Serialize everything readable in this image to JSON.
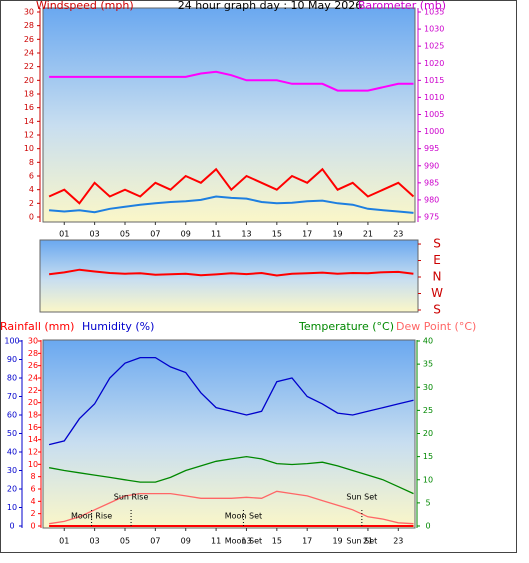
{
  "chart_data": [
    {
      "type": "line",
      "title": "24 hour graph day : 10 May 2026",
      "ylabel": "Windspeed (mph)",
      "y2label": "Barometer (mb)",
      "x": [
        0,
        1,
        2,
        3,
        4,
        5,
        6,
        7,
        8,
        9,
        10,
        11,
        12,
        13,
        14,
        15,
        16,
        17,
        18,
        19,
        20,
        21,
        22,
        23,
        24
      ],
      "xlim": [
        -0.4,
        24.1
      ],
      "xticks": [
        {
          "value": 1,
          "label": "01"
        },
        {
          "value": 3,
          "label": "03"
        },
        {
          "value": 5,
          "label": "05"
        },
        {
          "value": 7,
          "label": "07"
        },
        {
          "value": 9,
          "label": "09"
        },
        {
          "value": 11,
          "label": "11"
        },
        {
          "value": 13,
          "label": "13"
        },
        {
          "value": 15,
          "label": "15"
        },
        {
          "value": 17,
          "label": "17"
        },
        {
          "value": 19,
          "label": "19"
        },
        {
          "value": 21,
          "label": "21"
        },
        {
          "value": 23,
          "label": "23"
        }
      ],
      "ylim": [
        0,
        30
      ],
      "yticks": [
        0,
        2,
        4,
        6,
        8,
        10,
        12,
        14,
        16,
        18,
        20,
        22,
        24,
        26,
        28,
        30
      ],
      "ycolor": "#cc0000",
      "y2lim": [
        975,
        1035
      ],
      "y2ticks": [
        975,
        980,
        985,
        990,
        995,
        1000,
        1005,
        1010,
        1015,
        1020,
        1025,
        1030,
        1035
      ],
      "y2color": "#cc00cc",
      "series": [
        {
          "color": "#ff0000",
          "values": [
            3,
            4,
            2,
            5,
            3,
            4,
            3,
            5,
            4,
            6,
            5,
            7,
            4,
            6,
            5,
            4,
            6,
            5,
            7,
            4,
            5,
            3,
            4,
            5,
            3
          ]
        },
        {
          "color": "#1e7fe0",
          "values": [
            1,
            0.8,
            1,
            0.7,
            1.2,
            1.5,
            1.8,
            2,
            2.2,
            2.3,
            2.5,
            3,
            2.8,
            2.7,
            2.2,
            2,
            2.1,
            2.3,
            2.4,
            2,
            1.8,
            1.2,
            1,
            0.8,
            0.6
          ]
        },
        {
          "color": "#ff00ff",
          "axis": "y2",
          "values": [
            1016,
            1016,
            1016,
            1016,
            1016,
            1016,
            1016,
            1016,
            1016,
            1016,
            1017,
            1017.5,
            1016.5,
            1015,
            1015,
            1015,
            1014,
            1014,
            1014,
            1012,
            1012,
            1012,
            1013,
            1014,
            1014
          ]
        }
      ]
    },
    {
      "type": "line",
      "x": [
        0,
        1,
        2,
        3,
        4,
        5,
        6,
        7,
        8,
        9,
        10,
        11,
        12,
        13,
        14,
        15,
        16,
        17,
        18,
        19,
        20,
        21,
        22,
        23,
        24
      ],
      "xlim": [
        -0.6,
        24.3
      ],
      "ylim": [
        -191,
        202
      ],
      "yticks": [
        {
          "value": 180,
          "label": "S"
        },
        {
          "value": 90,
          "label": "E"
        },
        {
          "value": 0,
          "label": "N"
        },
        {
          "value": -90,
          "label": "W"
        },
        {
          "value": -180,
          "label": "S"
        }
      ],
      "series": [
        {
          "color": "#ff0000",
          "values": [
            15,
            25,
            40,
            30,
            22,
            18,
            20,
            12,
            15,
            18,
            10,
            14,
            20,
            16,
            22,
            8,
            18,
            20,
            24,
            18,
            22,
            20,
            26,
            28,
            18
          ]
        }
      ]
    },
    {
      "type": "line",
      "x": [
        0,
        1,
        2,
        3,
        4,
        5,
        6,
        7,
        8,
        9,
        10,
        11,
        12,
        13,
        14,
        15,
        16,
        17,
        18,
        19,
        20,
        21,
        22,
        23,
        24
      ],
      "xlim": [
        -0.4,
        24.1
      ],
      "xticks": [
        {
          "value": 1,
          "label": "01"
        },
        {
          "value": 3,
          "label": "03"
        },
        {
          "value": 5,
          "label": "05"
        },
        {
          "value": 7,
          "label": "07"
        },
        {
          "value": 9,
          "label": "09"
        },
        {
          "value": 11,
          "label": "11"
        },
        {
          "value": 13,
          "label": "13"
        },
        {
          "value": 15,
          "label": "15"
        },
        {
          "value": 17,
          "label": "17"
        },
        {
          "value": 19,
          "label": "19"
        },
        {
          "value": 21,
          "label": "21"
        },
        {
          "value": 23,
          "label": "23"
        }
      ],
      "axes": [
        {
          "label": "Humidity (%)",
          "color": "#0000cc",
          "lim": [
            0,
            100
          ],
          "ticks": [
            0,
            10,
            20,
            30,
            40,
            50,
            60,
            70,
            80,
            90,
            100
          ]
        },
        {
          "label": "Rainfall (mm)",
          "color": "#ff0000",
          "lim": [
            0,
            30
          ],
          "ticks": [
            0,
            2,
            4,
            6,
            8,
            10,
            12,
            14,
            16,
            18,
            20,
            22,
            24,
            26,
            28,
            30
          ]
        },
        {
          "label": "Temperature (°C)",
          "color": "#008800",
          "lim": [
            0,
            40
          ],
          "ticks": [
            0,
            5,
            10,
            15,
            20,
            25,
            30,
            35,
            40
          ]
        }
      ],
      "series": [
        {
          "color": "#0000cc",
          "axis": 0,
          "values": [
            44,
            46,
            58,
            66,
            80,
            88,
            91,
            91,
            86,
            83,
            72,
            64,
            62,
            60,
            62,
            78,
            80,
            70,
            66,
            61,
            60,
            62,
            64,
            66,
            68
          ]
        },
        {
          "color": "#ff0000",
          "axis": 1,
          "values": [
            0,
            0,
            0,
            0,
            0,
            0,
            0,
            0,
            0,
            0,
            0,
            0,
            0,
            0,
            0,
            0,
            0,
            0,
            0,
            0,
            0,
            0,
            0,
            0,
            0
          ]
        },
        {
          "color": "#008800",
          "axis": 2,
          "values": [
            12.6,
            12,
            11.5,
            11,
            10.5,
            10,
            9.5,
            9.5,
            10.5,
            12,
            13,
            14,
            14.5,
            15,
            14.5,
            13.5,
            13.3,
            13.5,
            13.8,
            13,
            12,
            11,
            10,
            8.5,
            7
          ]
        },
        {
          "name": "Dew Point (°C)",
          "color": "#ff6666",
          "axis": 2,
          "values": [
            0.5,
            1,
            2,
            3.5,
            5,
            6.5,
            7,
            7,
            7,
            6.5,
            6,
            6,
            6,
            6.2,
            6,
            7.5,
            7,
            6.5,
            5.5,
            4.5,
            3.5,
            2,
            1.5,
            0.7,
            0.5
          ]
        }
      ],
      "events": [
        {
          "label": "Moon Rise",
          "x": 2.8,
          "on_axis": false
        },
        {
          "label": "Sun Rise",
          "x": 5.4,
          "on_axis": false
        },
        {
          "label": "Moon Set",
          "x": 12.8,
          "on_axis": true
        },
        {
          "label": "Sun Set",
          "x": 20.6,
          "on_axis": true
        }
      ]
    }
  ]
}
